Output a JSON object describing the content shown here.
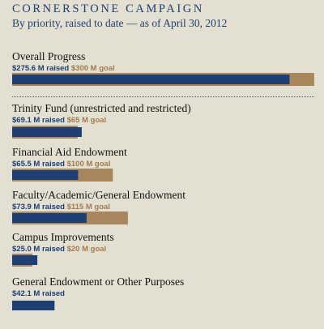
{
  "chart_data": {
    "type": "bar",
    "title": "CORNERSTONE CAMPAIGN",
    "subtitle": "By priority, raised to date — as of April 30, 2012",
    "unit": "$M",
    "xlim": [
      0,
      300
    ],
    "series_colors": {
      "raised": "#1d3f73",
      "goal": "#a8875f"
    },
    "items": [
      {
        "category": "Overall Progress",
        "raised": 275.6,
        "goal": 300,
        "raised_label": "$275.6 M raised",
        "goal_label": "$300 M goal"
      },
      {
        "category": "Trinity Fund (unrestricted and restricted)",
        "raised": 69.1,
        "goal": 65,
        "raised_label": "$69.1 M raised",
        "goal_label": "$65 M goal"
      },
      {
        "category": "Financial Aid Endowment",
        "raised": 65.5,
        "goal": 100,
        "raised_label": "$65.5 M raised",
        "goal_label": "$100 M goal"
      },
      {
        "category": "Faculty/Academic/General Endowment",
        "raised": 73.9,
        "goal": 115,
        "raised_label": "$73.9 M raised",
        "goal_label": "$115 M goal"
      },
      {
        "category": "Campus Improvements",
        "raised": 25.0,
        "goal": 20,
        "raised_label": "$25.0 M raised",
        "goal_label": "$20 M goal"
      },
      {
        "category": "General Endowment or Other Purposes",
        "raised": 42.1,
        "goal": null,
        "raised_label": "$42.1 M raised",
        "goal_label": ""
      }
    ]
  }
}
